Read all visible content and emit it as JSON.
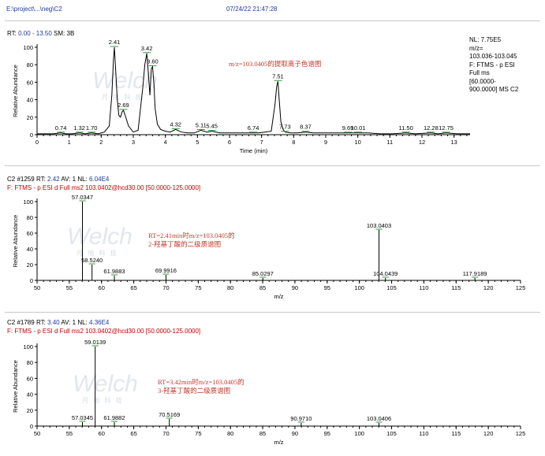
{
  "header": {
    "file_path": "E:\\project\\...\\neg\\C2",
    "timestamp": "07/24/22 21:47:28"
  },
  "top_info": {
    "rt_label": "RT:",
    "rt_range": "0.00 - 13.50",
    "sm_label": "SM:",
    "sm_value": "3B"
  },
  "side_info": {
    "line1": "NL: 7.75E5",
    "line2": "m/z=",
    "line3": "103.036-103.045",
    "line4": "F: FTMS - p ESI",
    "line5": "Full ms",
    "line6": "[60.0000-",
    "line7": "900.0000]  MS C2"
  },
  "panel2_info": {
    "scan": "C2 #1259",
    "rt_label": "RT:",
    "rt_value": "2.42",
    "av_label": "AV:",
    "av_value": "1",
    "nl_label": "NL:",
    "nl_value": "6.04E4",
    "filter": "F: FTMS - p ESI d Full ms2 103.0402@hcd30.00 [50.0000-125.0000]"
  },
  "panel3_info": {
    "scan": "C2 #1789",
    "rt_label": "RT:",
    "rt_value": "3.40",
    "av_label": "AV:",
    "av_value": "1",
    "nl_label": "NL:",
    "nl_value": "4.36E4",
    "filter": "F: FTMS - p ESI d Full ms2 103.0402@hcd30.00 [50.0000-125.0000]"
  },
  "watermark": {
    "brand": "Welch",
    "sub": "月 旭 科 技"
  },
  "colors": {
    "trace": "#000000",
    "annotation_red": "#c0392b",
    "marker_green": "#2e9e3e",
    "header_blue": "#1e3a9e",
    "watermark": "#c9d3de"
  },
  "chart_data": [
    {
      "type": "line",
      "title": "m/z=103.0405的提取离子色谱图",
      "xlabel": "Time (min)",
      "ylabel": "Relative Abundance",
      "xlim": [
        0,
        13.5
      ],
      "ylim": [
        0,
        100
      ],
      "xticks": [
        0,
        1,
        2,
        3,
        4,
        5,
        6,
        7,
        8,
        9,
        10,
        11,
        12,
        13
      ],
      "yticks": [
        0,
        20,
        40,
        60,
        80,
        100
      ],
      "grid": false,
      "series": [
        {
          "x": [
            0,
            0.3,
            0.5,
            0.74,
            0.9,
            1.1,
            1.32,
            1.5,
            1.7,
            1.9,
            2.1,
            2.25,
            2.33,
            2.38,
            2.41,
            2.45,
            2.5,
            2.55,
            2.6,
            2.65,
            2.69,
            2.75,
            2.85,
            3.0,
            3.15,
            3.3,
            3.36,
            3.42,
            3.47,
            3.52,
            3.56,
            3.6,
            3.64,
            3.68,
            3.75,
            3.85,
            4.0,
            4.15,
            4.32,
            4.5,
            4.7,
            4.9,
            5.11,
            5.3,
            5.45,
            5.7,
            6.0,
            6.3,
            6.74,
            6.9,
            7.1,
            7.3,
            7.42,
            7.47,
            7.51,
            7.55,
            7.6,
            7.67,
            7.73,
            7.9,
            8.1,
            8.37,
            8.6,
            8.9,
            9.2,
            9.69,
            9.9,
            10.01,
            10.3,
            10.7,
            11.1,
            11.5,
            11.8,
            12.28,
            12.5,
            12.75,
            13.1,
            13.5
          ],
          "y": [
            1,
            1,
            1,
            2,
            1,
            1,
            2,
            1,
            2,
            1,
            3,
            10,
            45,
            85,
            100,
            75,
            40,
            22,
            20,
            26,
            28,
            22,
            10,
            3,
            5,
            55,
            80,
            93,
            70,
            45,
            75,
            78,
            60,
            30,
            12,
            6,
            4,
            3,
            6,
            3,
            2,
            2,
            5,
            3,
            4,
            2,
            2,
            2,
            2,
            2,
            3,
            4,
            35,
            55,
            61,
            40,
            15,
            6,
            3,
            2,
            2,
            3,
            2,
            2,
            2,
            2,
            2,
            2,
            2,
            1,
            1,
            2,
            1,
            2,
            1,
            2,
            1,
            1
          ]
        }
      ],
      "peak_labels": [
        {
          "label": "0.74",
          "x": 0.74,
          "y": 2
        },
        {
          "label": "1.32",
          "x": 1.32,
          "y": 2
        },
        {
          "label": "1.70",
          "x": 1.7,
          "y": 2
        },
        {
          "label": "2.41",
          "x": 2.41,
          "y": 100
        },
        {
          "label": "2.69",
          "x": 2.69,
          "y": 28
        },
        {
          "label": "3.42",
          "x": 3.42,
          "y": 93
        },
        {
          "label": "3.60",
          "x": 3.6,
          "y": 78
        },
        {
          "label": "4.32",
          "x": 4.32,
          "y": 6
        },
        {
          "label": "5.11",
          "x": 5.11,
          "y": 5
        },
        {
          "label": "5.45",
          "x": 5.45,
          "y": 4
        },
        {
          "label": "6.74",
          "x": 6.74,
          "y": 2
        },
        {
          "label": "7.51",
          "x": 7.51,
          "y": 61
        },
        {
          "label": "7.73",
          "x": 7.73,
          "y": 3
        },
        {
          "label": "8.37",
          "x": 8.37,
          "y": 3
        },
        {
          "label": "9.69",
          "x": 9.69,
          "y": 2
        },
        {
          "label": "10.01",
          "x": 10.01,
          "y": 2
        },
        {
          "label": "11.50",
          "x": 11.5,
          "y": 2
        },
        {
          "label": "12.28",
          "x": 12.28,
          "y": 2
        },
        {
          "label": "12.75",
          "x": 12.75,
          "y": 2
        }
      ]
    },
    {
      "type": "bar",
      "title": "RT=2.41min时m/z=103.0405的2-羟基丁酸的二级质谱图",
      "xlabel": "m/z",
      "ylabel": "Relative Abundance",
      "xlim": [
        50,
        125
      ],
      "ylim": [
        0,
        100
      ],
      "xticks": [
        50,
        55,
        60,
        65,
        70,
        75,
        80,
        85,
        90,
        95,
        100,
        105,
        110,
        115,
        120,
        125
      ],
      "yticks": [
        0,
        20,
        40,
        60,
        80,
        100
      ],
      "grid": false,
      "peaks": [
        {
          "mz": 57.0347,
          "intensity": 100,
          "label": "57.0347"
        },
        {
          "mz": 58.524,
          "intensity": 20,
          "label": "58.5240"
        },
        {
          "mz": 61.9883,
          "intensity": 6,
          "label": "61.9883"
        },
        {
          "mz": 69.9916,
          "intensity": 7,
          "label": "69.9916"
        },
        {
          "mz": 85.0297,
          "intensity": 3,
          "label": "85.0297"
        },
        {
          "mz": 103.0403,
          "intensity": 64,
          "label": "103.0403"
        },
        {
          "mz": 104.0439,
          "intensity": 3,
          "label": "104.0439"
        },
        {
          "mz": 117.9189,
          "intensity": 3,
          "label": "117.9189"
        }
      ]
    },
    {
      "type": "bar",
      "title": "RT=3.42min时m/z=103.0405的3-羟基丁酸的二级质谱图",
      "xlabel": "m/z",
      "ylabel": "Relative Abundance",
      "xlim": [
        50,
        125
      ],
      "ylim": [
        0,
        100
      ],
      "xticks": [
        50,
        55,
        60,
        65,
        70,
        75,
        80,
        85,
        90,
        95,
        100,
        105,
        110,
        115,
        120,
        125
      ],
      "yticks": [
        0,
        20,
        40,
        60,
        80,
        100
      ],
      "grid": false,
      "peaks": [
        {
          "mz": 57.0345,
          "intensity": 5,
          "label": "57.0345"
        },
        {
          "mz": 59.0139,
          "intensity": 100,
          "label": "59.0139"
        },
        {
          "mz": 61.9882,
          "intensity": 5,
          "label": "61.9882"
        },
        {
          "mz": 70.5169,
          "intensity": 9,
          "label": "70.5169"
        },
        {
          "mz": 90.971,
          "intensity": 4,
          "label": "90.9710"
        },
        {
          "mz": 103.0406,
          "intensity": 4,
          "label": "103.0406"
        }
      ]
    }
  ]
}
